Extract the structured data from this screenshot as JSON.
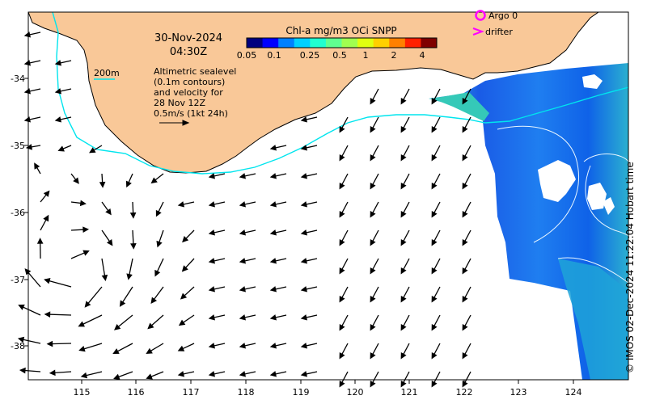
{
  "map": {
    "date": "30-Nov-2024",
    "time": "04:30Z",
    "colorbar": {
      "title": "Chl-a mg/m3 OCi SNPP",
      "ticks": [
        "0.05",
        "0.1",
        "0.25",
        "0.5",
        "1",
        "2",
        "4"
      ],
      "colors": [
        "#00007f",
        "#0000ff",
        "#0080ff",
        "#00d0ff",
        "#20ffd0",
        "#60ff90",
        "#a0ff50",
        "#e0ff10",
        "#ffd000",
        "#ff8000",
        "#ff2000",
        "#7f0000"
      ]
    },
    "legend": {
      "argo": "Argo 0",
      "drifter": "drifter",
      "contour_label": "200m",
      "altimetry_lines": [
        "Altimetric sealevel",
        "(0.1m contours)",
        "and velocity for",
        "28 Nov 12Z",
        "0.5m/s (1kt 24h)"
      ]
    },
    "x_ticks": [
      "115",
      "116",
      "117",
      "118",
      "119",
      "120",
      "121",
      "122",
      "123",
      "124"
    ],
    "y_ticks": [
      "-34",
      "-35",
      "-36",
      "-37",
      "-38"
    ],
    "credit": "© IMOS 02-Dec-2024 11:22:04 Hobart time",
    "colors": {
      "land": "#f9c898",
      "contour_200m": "#00e5ee",
      "argo": "#ff00ff",
      "drifter": "#ff00ff",
      "coast": "#000000"
    }
  }
}
